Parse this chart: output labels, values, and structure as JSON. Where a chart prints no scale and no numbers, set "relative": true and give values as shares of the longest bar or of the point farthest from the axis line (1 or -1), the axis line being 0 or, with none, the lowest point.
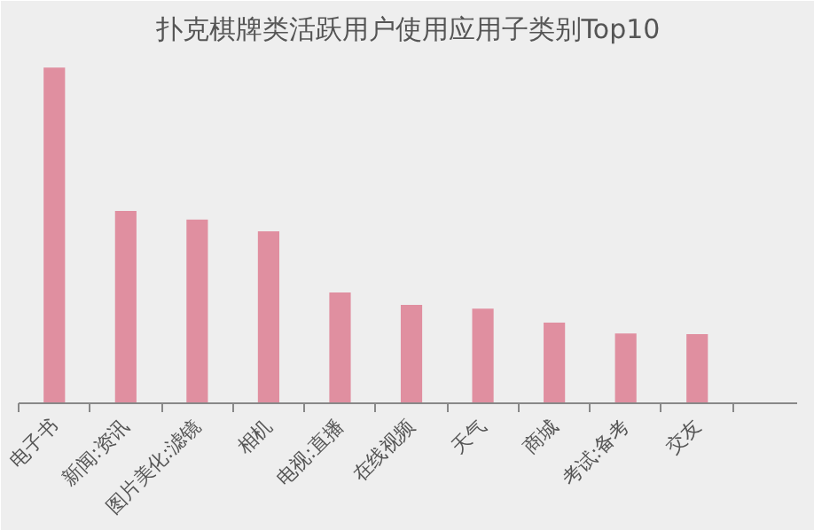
{
  "chart_data": {
    "type": "bar",
    "title": "扑克棋牌类活跃用户使用应用子类别Top10",
    "relative": true,
    "categories": [
      "电子书",
      "新闻:资讯",
      "图片美化:滤镜",
      "相机",
      "电视:直播",
      "在线视频",
      "天气",
      "商城",
      "考试:备考",
      "交友"
    ],
    "values": [
      1,
      0.573,
      0.547,
      0.512,
      0.33,
      0.293,
      0.282,
      0.24,
      0.208,
      0.206
    ],
    "color": "#e08fa0",
    "grid": false
  }
}
